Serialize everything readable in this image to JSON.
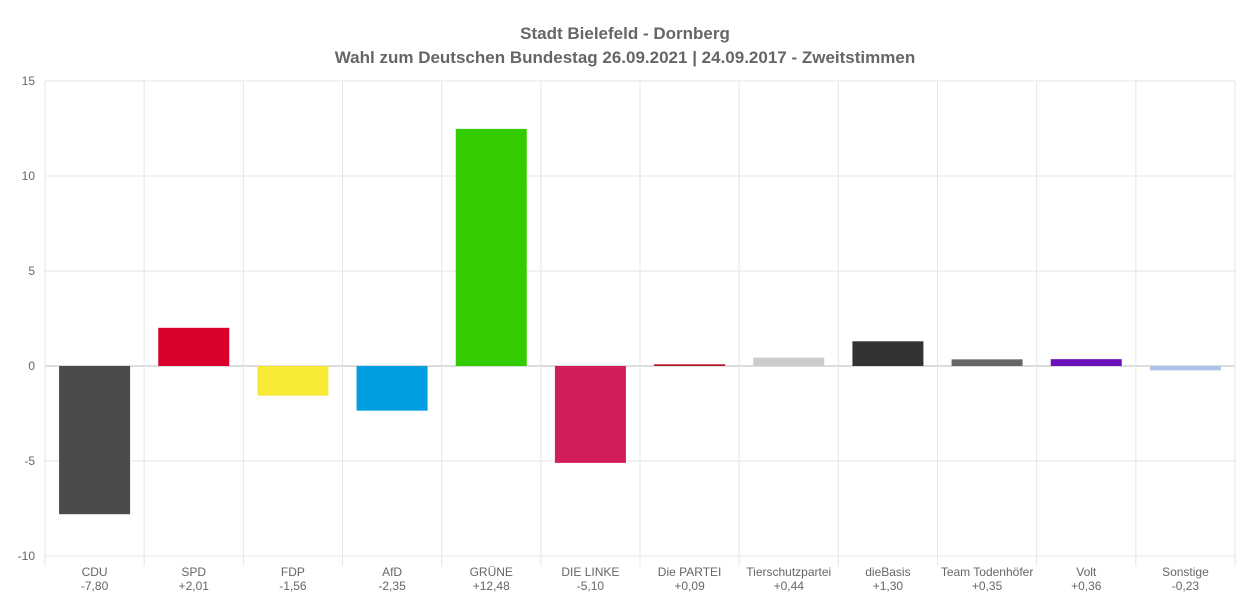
{
  "chart_data": {
    "type": "bar",
    "title": "Stadt Bielefeld - Dornberg",
    "subtitle": "Wahl zum Deutschen Bundestag 26.09.2021  | 24.09.2017 - Zweitstimmen",
    "xlabel": "",
    "ylabel": "",
    "ylim": [
      -10,
      15
    ],
    "yticks": [
      -10,
      -5,
      0,
      5,
      10,
      15
    ],
    "grid": true,
    "categories": [
      "CDU",
      "SPD",
      "FDP",
      "AfD",
      "GRÜNE",
      "DIE LINKE",
      "Die PARTEI",
      "Tierschutzpartei",
      "dieBasis",
      "Team Todenhöfer",
      "Volt",
      "Sonstige"
    ],
    "values": [
      -7.8,
      2.01,
      -1.56,
      -2.35,
      12.48,
      -5.1,
      0.09,
      0.44,
      1.3,
      0.35,
      0.36,
      -0.23
    ],
    "value_labels": [
      "-7,80",
      "+2,01",
      "-1,56",
      "-2,35",
      "+12,48",
      "-5,10",
      "+0,09",
      "+0,44",
      "+1,30",
      "+0,35",
      "+0,36",
      "-0,23"
    ],
    "colors": [
      "#4a4a4a",
      "#d9002b",
      "#f7e934",
      "#009ee0",
      "#33cc00",
      "#d11d5a",
      "#b5152b",
      "#cccccc",
      "#333333",
      "#666666",
      "#6b0fba",
      "#adc2e8"
    ]
  }
}
